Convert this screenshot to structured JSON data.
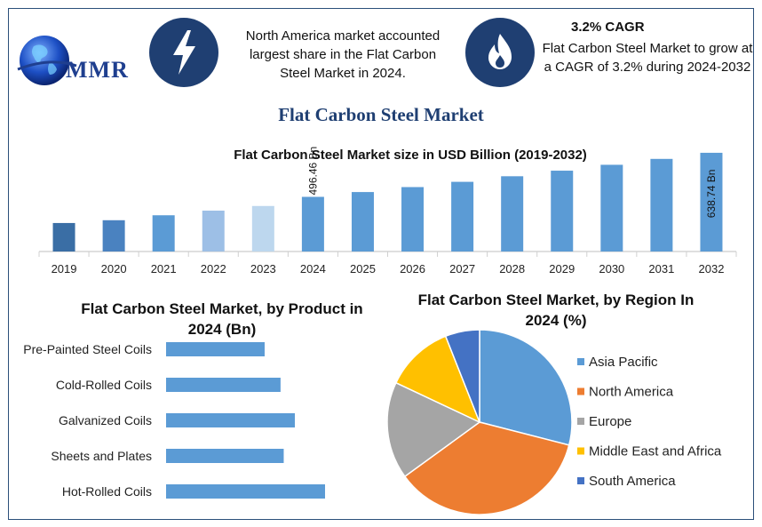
{
  "header": {
    "logo_text": "MMR",
    "note_left": "North America market accounted largest share in the Flat Carbon Steel Market in 2024.",
    "cagr_title": "3.2% CAGR",
    "note_right": "Flat Carbon Steel Market to grow at a CAGR of 3.2% during 2024-2032",
    "main_title": "Flat Carbon Steel Market",
    "icons": [
      "lightning-icon",
      "flame-icon",
      "globe-icon"
    ]
  },
  "chart_data": [
    {
      "type": "bar",
      "title": "Flat Carbon Steel Market size in USD Billion (2019-2032)",
      "categories": [
        "2019",
        "2020",
        "2021",
        "2022",
        "2023",
        "2024",
        "2025",
        "2026",
        "2027",
        "2028",
        "2029",
        "2030",
        "2031",
        "2032"
      ],
      "values": [
        412,
        421,
        437,
        452,
        467,
        496.46,
        512,
        528,
        545,
        563,
        581,
        600,
        619,
        638.74
      ],
      "colors": [
        "#3a6ea5",
        "#4a82c0",
        "#5b9bd5",
        "#9dbfe6",
        "#bdd7ee",
        "#5b9bd5",
        "#5b9bd5",
        "#5b9bd5",
        "#5b9bd5",
        "#5b9bd5",
        "#5b9bd5",
        "#5b9bd5",
        "#5b9bd5",
        "#5b9bd5"
      ],
      "data_labels": [
        {
          "category": "2024",
          "text": "496.46 Bn"
        },
        {
          "category": "2032",
          "text": "638.74 Bn"
        }
      ],
      "ylim": [
        320,
        650
      ],
      "grid": false
    },
    {
      "type": "bar",
      "orientation": "horizontal",
      "title": "Flat Carbon Steel Market, by Product in 2024 (Bn)",
      "categories": [
        "Pre-Painted Steel Coils",
        "Cold-Rolled Coils",
        "Galvanized Coils",
        "Sheets and Plates",
        "Hot-Rolled Coils"
      ],
      "values": [
        62,
        72,
        81,
        74,
        100
      ],
      "color": "#5b9bd5",
      "xlim": [
        0,
        100
      ]
    },
    {
      "type": "pie",
      "title": "Flat Carbon Steel Market, by Region In 2024 (%)",
      "series": [
        {
          "name": "Asia Pacific",
          "value": 29,
          "color": "#5b9bd5"
        },
        {
          "name": "North America",
          "value": 36,
          "color": "#ed7d31"
        },
        {
          "name": "Europe",
          "value": 17,
          "color": "#a5a5a5"
        },
        {
          "name": "Middle East and Africa",
          "value": 12,
          "color": "#ffc000"
        },
        {
          "name": "South America",
          "value": 6,
          "color": "#4472c4"
        }
      ],
      "legend": "right"
    }
  ]
}
